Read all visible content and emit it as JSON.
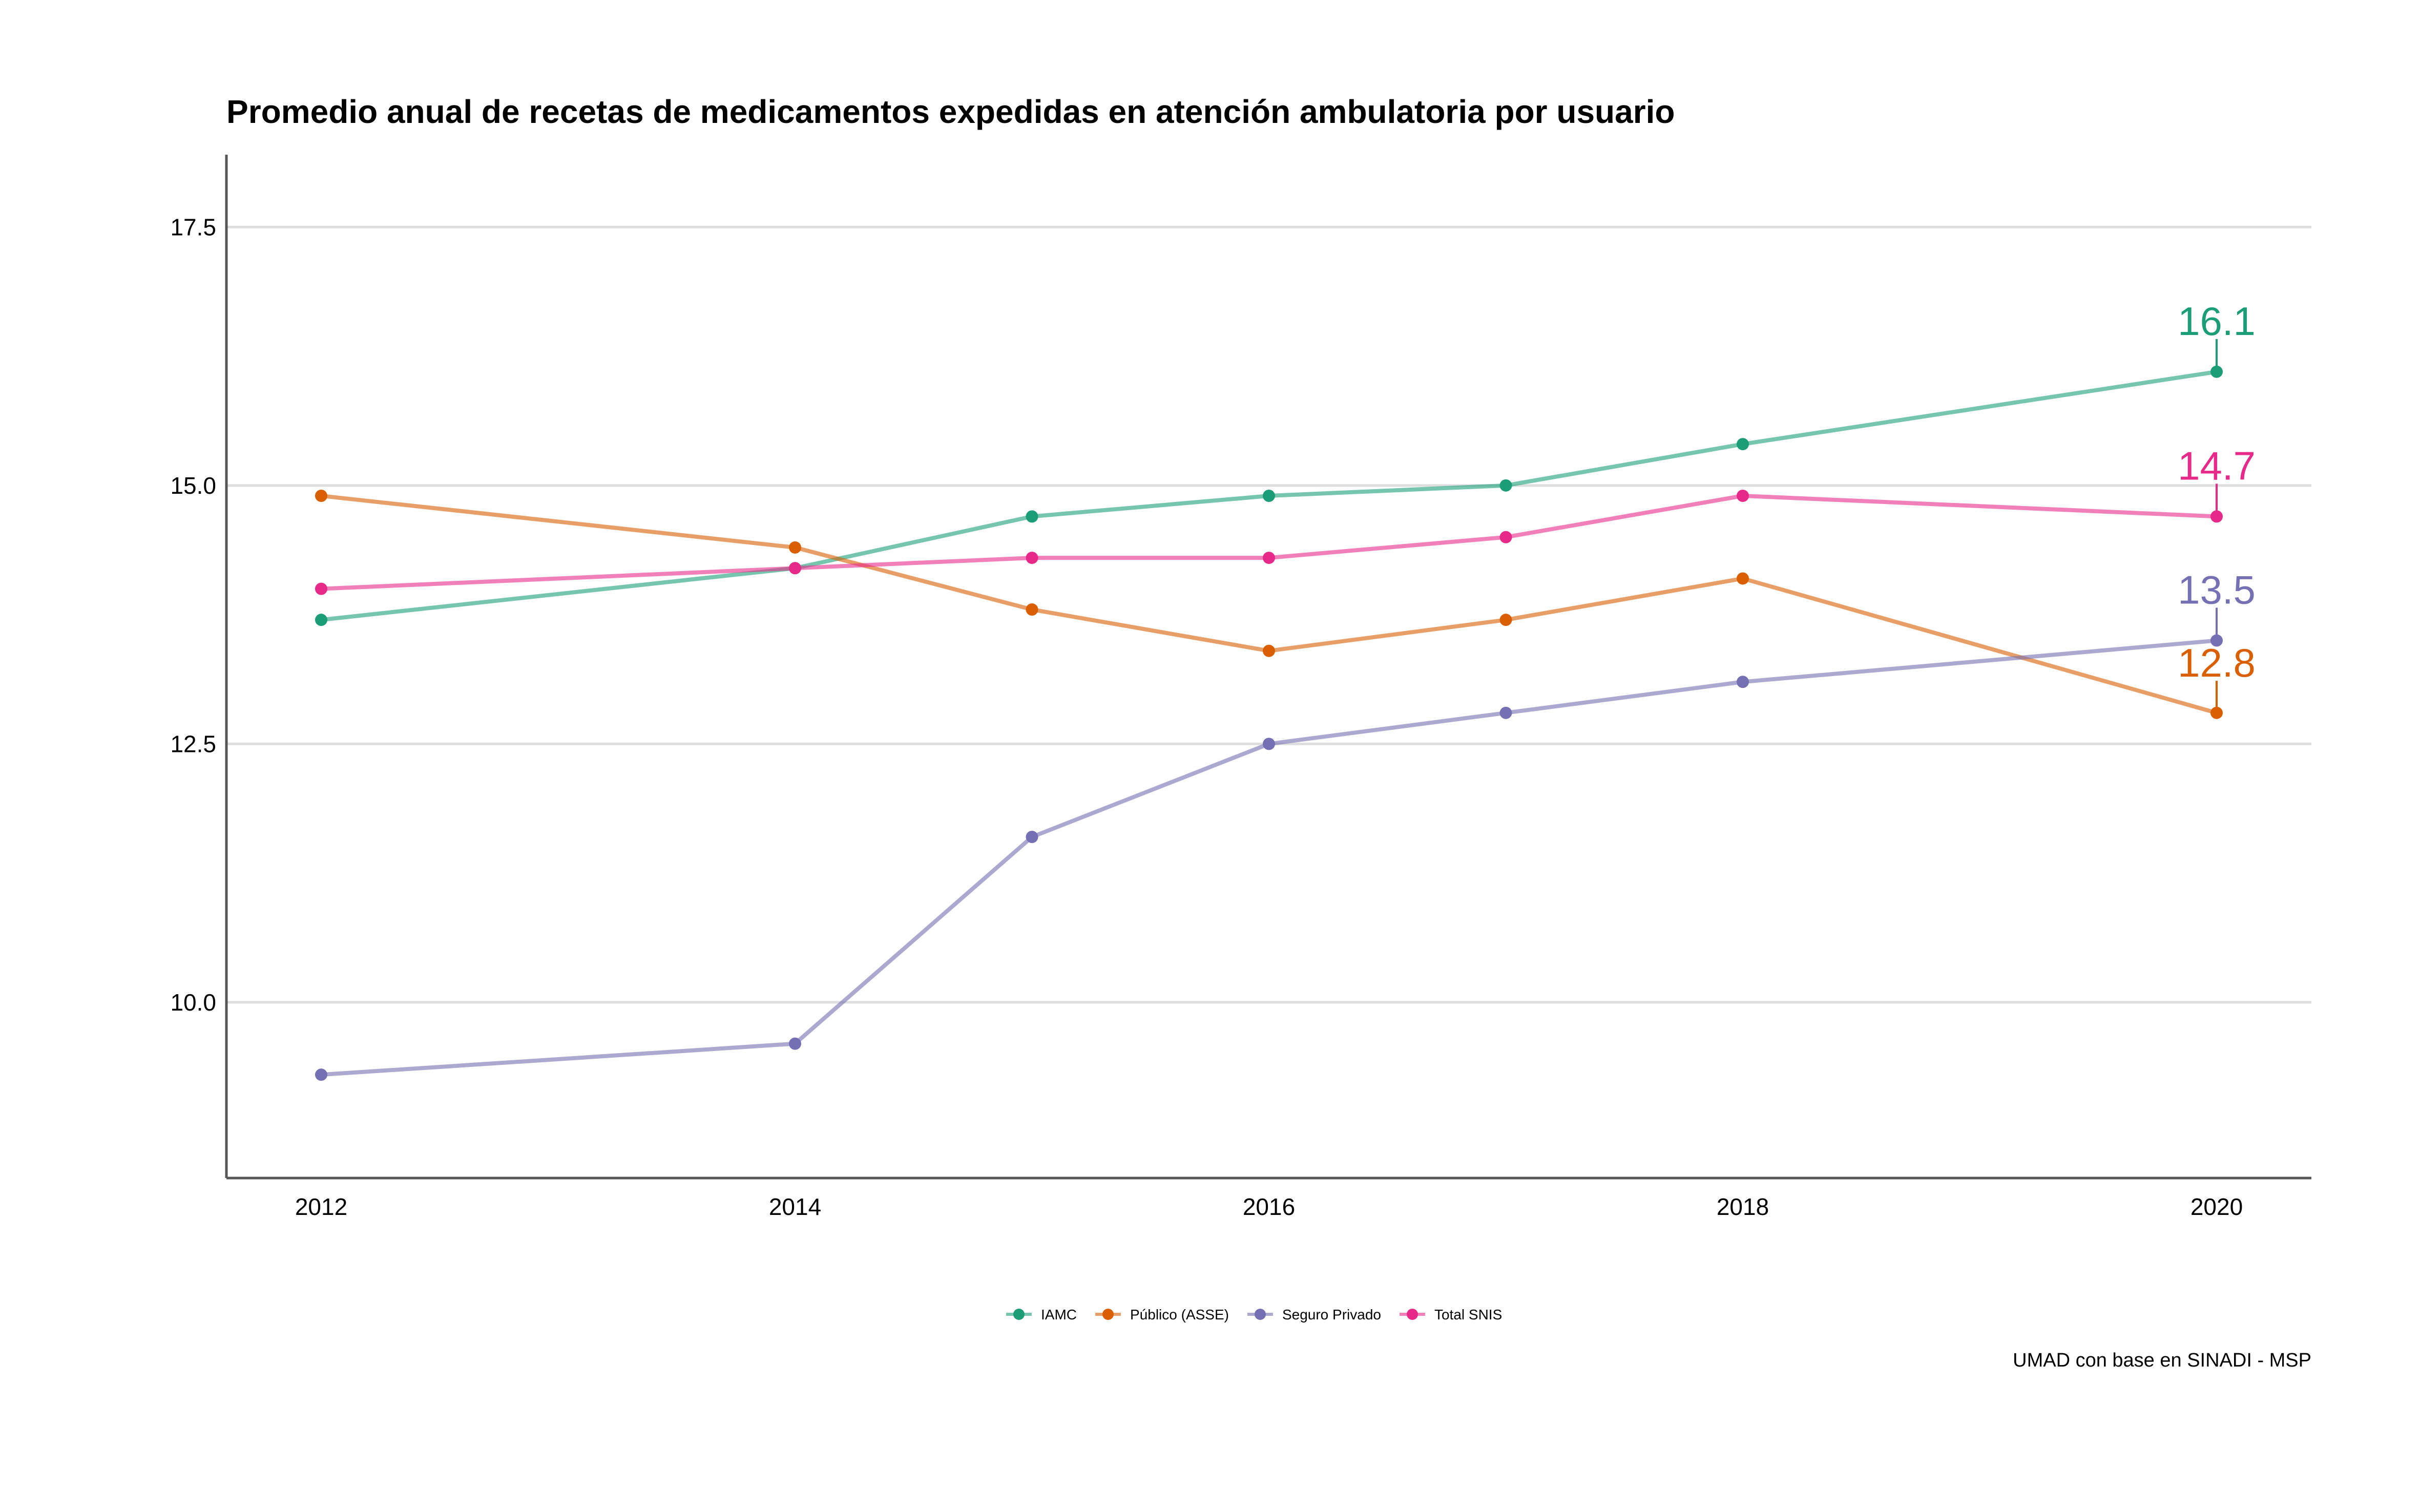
{
  "chart_data": {
    "type": "line",
    "title": "Promedio anual de recetas de medicamentos expedidas en atención ambulatoria por usuario",
    "xlabel": "",
    "ylabel": "",
    "x": [
      2012,
      2014,
      2015,
      2016,
      2017,
      2018,
      2020
    ],
    "xticks": [
      2012,
      2014,
      2016,
      2018,
      2020
    ],
    "xtick_labels": [
      "2012",
      "2014",
      "2016",
      "2018",
      "2020"
    ],
    "xlim": [
      2011.6,
      2020.4
    ],
    "ylim": [
      8.3,
      18.2
    ],
    "yticks": [
      10.0,
      12.5,
      15.0,
      17.5
    ],
    "ytick_labels": [
      "10.0",
      "12.5",
      "15.0",
      "17.5"
    ],
    "grid": "horizontal",
    "legend_position": "bottom",
    "series": [
      {
        "name": "IAMC",
        "color": "#1b9e77",
        "values": [
          13.7,
          14.2,
          14.7,
          14.9,
          15.0,
          15.4,
          16.1
        ],
        "end_label": "16.1"
      },
      {
        "name": "Público (ASSE)",
        "color": "#d95f02",
        "values": [
          14.9,
          14.4,
          13.8,
          13.4,
          13.7,
          14.1,
          12.8
        ],
        "end_label": "12.8"
      },
      {
        "name": "Seguro Privado",
        "color": "#7570b3",
        "values": [
          9.3,
          9.6,
          11.6,
          12.5,
          12.8,
          13.1,
          13.5
        ],
        "end_label": "13.5"
      },
      {
        "name": "Total SNIS",
        "color": "#e7298a",
        "values": [
          14.0,
          14.2,
          14.3,
          14.3,
          14.5,
          14.9,
          14.7
        ],
        "end_label": "14.7"
      }
    ],
    "caption": "UMAD con base en SINADI - MSP"
  }
}
